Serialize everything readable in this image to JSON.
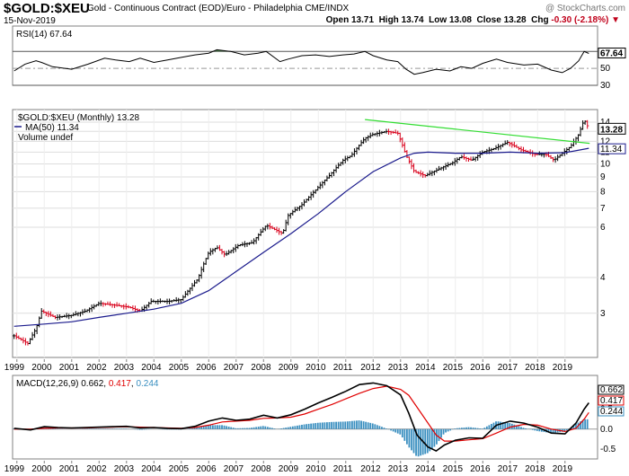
{
  "header": {
    "symbol": "$GOLD:$XEU",
    "description": "Gold - Continuous Contract (EOD)/Euro - Philadelphia  CME/INDX",
    "date": "15-Nov-2019",
    "watermark": "@ StockCharts.com",
    "open_label": "Open",
    "open": "13.71",
    "high_label": "High",
    "high": "13.74",
    "low_label": "Low",
    "low": "13.08",
    "close_label": "Close",
    "close": "13.28",
    "chg_label": "Chg",
    "chg": "-0.30 (-2.18%)",
    "chg_arrow": "▼"
  },
  "colors": {
    "up": "#000000",
    "down": "#d9001b",
    "ma": "#1a1a8c",
    "trend": "#33dd33",
    "macd": "#000000",
    "signal": "#e00000",
    "hist": "#3a8fc0",
    "rsi": "#000000",
    "rsi_fill": "#4a7a4a",
    "axis": "#808080",
    "grid": "#dddddd"
  },
  "chart_data": [
    {
      "type": "line",
      "name": "rsi-panel",
      "legend": "RSI(14) 67.64",
      "value_label": "67.64",
      "ylim": [
        30,
        100
      ],
      "yticks": [
        "70",
        "50",
        "30"
      ],
      "overbought": 70,
      "oversold": 30,
      "x": [
        1998.9,
        1999.3,
        1999.7,
        1999.9,
        2000.3,
        2001.0,
        2001.6,
        2002.2,
        2002.6,
        2003.1,
        2003.5,
        2004.0,
        2004.5,
        2005.0,
        2005.5,
        2006.0,
        2006.3,
        2006.8,
        2007.3,
        2007.8,
        2008.1,
        2008.6,
        2008.9,
        2009.4,
        2009.9,
        2010.4,
        2010.9,
        2011.3,
        2011.7,
        2012.0,
        2012.5,
        2012.9,
        2013.2,
        2013.5,
        2013.8,
        2014.3,
        2014.8,
        2015.2,
        2015.6,
        2016.0,
        2016.5,
        2016.9,
        2017.5,
        2018.0,
        2018.5,
        2018.9,
        2019.2,
        2019.5,
        2019.7,
        2019.87
      ],
      "values": [
        47,
        55,
        59,
        57,
        52,
        49,
        55,
        62,
        60,
        58,
        62,
        57,
        60,
        63,
        66,
        68,
        72,
        70,
        66,
        68,
        70,
        58,
        61,
        65,
        66,
        64,
        66,
        67,
        70,
        65,
        60,
        58,
        49,
        43,
        45,
        49,
        47,
        52,
        50,
        56,
        61,
        57,
        54,
        55,
        48,
        45,
        50,
        59,
        70,
        67.64
      ]
    },
    {
      "type": "line",
      "name": "price-panel",
      "legend_price": "$GOLD:$XEU (Monthly) 13.28",
      "legend_ma": "MA(50) 11.34",
      "legend_volume": "Volume undef",
      "price_label": "13.28",
      "ma_label": "11.34",
      "scale": "log",
      "ylim": [
        2.1,
        15.5
      ],
      "yticks": [
        3,
        4,
        6,
        7,
        8,
        9,
        10,
        11,
        12,
        13,
        14
      ],
      "x": [
        1998.9,
        1999.4,
        1999.7,
        1999.9,
        2000.4,
        2001.0,
        2001.5,
        2002.0,
        2002.6,
        2003.1,
        2003.5,
        2003.9,
        2004.5,
        2005.0,
        2005.6,
        2006.0,
        2006.3,
        2006.6,
        2007.1,
        2007.6,
        2008.1,
        2008.7,
        2008.9,
        2009.4,
        2009.9,
        2010.4,
        2010.9,
        2011.2,
        2011.7,
        2012.0,
        2012.5,
        2012.9,
        2013.2,
        2013.5,
        2013.9,
        2014.3,
        2014.9,
        2015.2,
        2015.6,
        2016.0,
        2016.4,
        2016.9,
        2017.4,
        2017.9,
        2018.3,
        2018.6,
        2018.9,
        2019.2,
        2019.5,
        2019.7,
        2019.87
      ],
      "values": [
        2.5,
        2.35,
        2.65,
        3.05,
        2.9,
        2.95,
        3.05,
        3.25,
        3.2,
        3.15,
        3.05,
        3.3,
        3.3,
        3.35,
        3.95,
        4.9,
        5.1,
        4.8,
        5.2,
        5.3,
        6.1,
        5.7,
        6.6,
        7.2,
        8.1,
        9.1,
        10.3,
        10.7,
        12.3,
        12.7,
        13.0,
        12.8,
        10.7,
        9.4,
        9.1,
        9.5,
        10.1,
        10.6,
        10.3,
        11.0,
        11.3,
        11.9,
        11.2,
        10.8,
        10.8,
        10.3,
        10.9,
        11.5,
        12.7,
        14.3,
        13.28
      ],
      "ma_x": [
        1998.9,
        2000.0,
        2001.0,
        2002.0,
        2003.0,
        2004.0,
        2005.0,
        2006.0,
        2007.0,
        2008.0,
        2009.0,
        2010.0,
        2011.0,
        2012.0,
        2013.0,
        2013.5,
        2014.0,
        2015.0,
        2016.0,
        2017.0,
        2018.0,
        2019.0,
        2019.87
      ],
      "ma_values": [
        2.7,
        2.75,
        2.8,
        2.9,
        3.0,
        3.1,
        3.25,
        3.6,
        4.2,
        4.9,
        5.7,
        6.7,
        8.0,
        9.4,
        10.5,
        10.9,
        11.0,
        10.9,
        10.9,
        11.0,
        10.9,
        10.95,
        11.34
      ],
      "trendline": {
        "x": [
          2011.7,
          2019.9
        ],
        "values": [
          14.3,
          11.8
        ]
      }
    },
    {
      "type": "line",
      "name": "macd-panel",
      "legend_prefix": "MACD(12,26,9)",
      "macd_value": "0.662",
      "signal_value": "0.417",
      "hist_value": "0.244",
      "ylim": [
        -0.75,
        1.35
      ],
      "yticks": [
        "1.0",
        "0.5",
        "0.0",
        "-0.5"
      ],
      "x": [
        1998.9,
        1999.5,
        2000.0,
        2000.5,
        2001.0,
        2001.5,
        2002.0,
        2002.5,
        2003.0,
        2003.5,
        2004.0,
        2004.5,
        2005.0,
        2005.5,
        2006.0,
        2006.5,
        2007.0,
        2007.5,
        2008.0,
        2008.5,
        2009.0,
        2009.5,
        2010.0,
        2010.5,
        2011.0,
        2011.5,
        2012.0,
        2012.5,
        2013.0,
        2013.3,
        2013.6,
        2014.0,
        2014.3,
        2014.6,
        2015.0,
        2015.5,
        2016.0,
        2016.5,
        2017.0,
        2017.5,
        2018.0,
        2018.5,
        2019.0,
        2019.4,
        2019.7,
        2019.87
      ],
      "macd": [
        0.02,
        -0.02,
        0.06,
        0.04,
        0.03,
        0.04,
        0.05,
        0.06,
        0.07,
        0.03,
        0.04,
        0.02,
        0.01,
        0.07,
        0.2,
        0.28,
        0.22,
        0.25,
        0.35,
        0.28,
        0.36,
        0.5,
        0.66,
        0.8,
        0.95,
        1.12,
        1.16,
        1.09,
        0.86,
        0.4,
        -0.15,
        -0.45,
        -0.55,
        -0.4,
        -0.28,
        -0.22,
        -0.23,
        0.1,
        0.2,
        0.15,
        0.05,
        -0.1,
        -0.12,
        0.15,
        0.5,
        0.662
      ],
      "signal": [
        0.0,
        0.0,
        0.02,
        0.03,
        0.03,
        0.03,
        0.04,
        0.05,
        0.06,
        0.05,
        0.04,
        0.03,
        0.02,
        0.04,
        0.1,
        0.18,
        0.2,
        0.22,
        0.27,
        0.28,
        0.3,
        0.38,
        0.5,
        0.62,
        0.76,
        0.9,
        1.02,
        1.08,
        1.0,
        0.85,
        0.55,
        0.15,
        -0.15,
        -0.3,
        -0.3,
        -0.27,
        -0.24,
        -0.1,
        0.05,
        0.12,
        0.1,
        0.0,
        -0.06,
        0.02,
        0.25,
        0.417
      ],
      "histogram": [
        0.02,
        -0.02,
        0.04,
        0.01,
        0.0,
        0.01,
        0.01,
        0.01,
        0.01,
        -0.02,
        0.0,
        -0.01,
        -0.01,
        0.03,
        0.1,
        0.1,
        0.02,
        0.03,
        0.08,
        0.0,
        0.06,
        0.12,
        0.16,
        0.18,
        0.19,
        0.22,
        0.14,
        0.01,
        -0.14,
        -0.45,
        -0.7,
        -0.6,
        -0.4,
        -0.1,
        0.02,
        0.05,
        0.01,
        0.2,
        0.15,
        0.03,
        -0.05,
        -0.1,
        -0.06,
        0.13,
        0.25,
        0.244
      ]
    }
  ],
  "x_axis": {
    "years": [
      "1999",
      "2000",
      "2001",
      "2002",
      "2003",
      "2004",
      "2005",
      "2006",
      "2007",
      "2008",
      "2009",
      "2010",
      "2011",
      "2012",
      "2013",
      "2014",
      "2015",
      "2016",
      "2017",
      "2018",
      "2019"
    ]
  }
}
